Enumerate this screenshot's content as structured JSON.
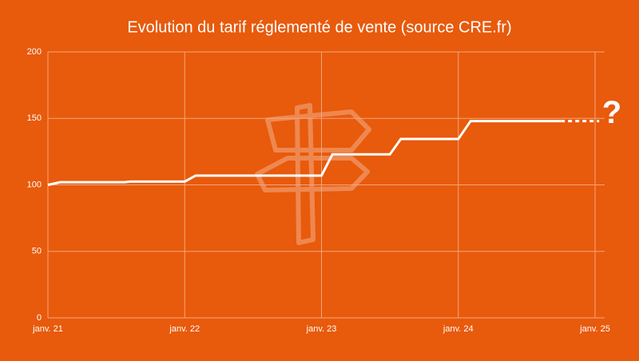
{
  "chart_data": {
    "type": "line",
    "title": "Evolution du tarif réglementé de vente (source CRE.fr)",
    "annotation": "?",
    "xlim": [
      2021,
      2025.07
    ],
    "xticks": [
      {
        "value": 2021,
        "label": "janv. 21"
      },
      {
        "value": 2022,
        "label": "janv. 22"
      },
      {
        "value": 2023,
        "label": "janv. 23"
      },
      {
        "value": 2024,
        "label": "janv. 24"
      },
      {
        "value": 2025,
        "label": "janv. 25"
      }
    ],
    "ylim": [
      0,
      200
    ],
    "yticks": [
      0,
      50,
      100,
      150,
      200
    ],
    "grid": true,
    "series": [
      {
        "color": "#ffffff",
        "dashed": false,
        "x": [
          2021.0,
          2021.09,
          2021.56,
          2021.6,
          2022.0,
          2022.08,
          2023.0,
          2023.08,
          2023.5,
          2023.58,
          2024.0,
          2024.09,
          2024.75
        ],
        "values": [
          100,
          102,
          102,
          102.5,
          102.5,
          107,
          107,
          123,
          123,
          134.5,
          134.5,
          148,
          148
        ]
      },
      {
        "color": "#ffffff",
        "dashed": true,
        "x": [
          2024.75,
          2025.03
        ],
        "values": [
          148,
          148
        ]
      }
    ]
  }
}
